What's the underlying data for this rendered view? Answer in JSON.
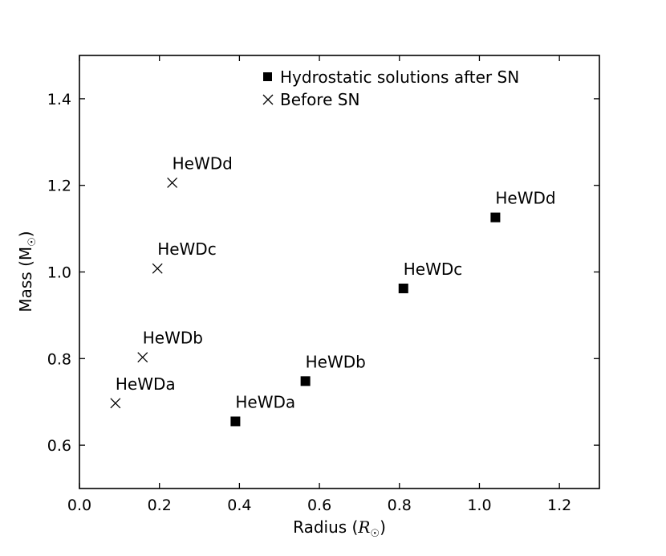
{
  "chart_data": {
    "type": "scatter",
    "title": "",
    "xlabel": "Radius (",
    "xlabel_symbol": "R",
    "xlabel_suffix": ")",
    "ylabel": "Mass (M",
    "ylabel_suffix": ")",
    "xlim": [
      0.0,
      1.3
    ],
    "ylim": [
      0.5,
      1.5
    ],
    "xticks": [
      0.0,
      0.2,
      0.4,
      0.6,
      0.8,
      1.0,
      1.2
    ],
    "yticks": [
      0.6,
      0.8,
      1.0,
      1.2,
      1.4
    ],
    "xtick_labels": [
      "0.0",
      "0.2",
      "0.4",
      "0.6",
      "0.8",
      "1.0",
      "1.2"
    ],
    "ytick_labels": [
      "0.6",
      "0.8",
      "1.0",
      "1.2",
      "1.4"
    ],
    "grid": false,
    "legend_position": "top-right",
    "series": [
      {
        "name": "Hydrostatic solutions after SN",
        "marker": "square",
        "color": "#000000",
        "points": [
          {
            "x": 0.39,
            "y": 0.655,
            "label": "HeWDa"
          },
          {
            "x": 0.565,
            "y": 0.748,
            "label": "HeWDb"
          },
          {
            "x": 0.81,
            "y": 0.962,
            "label": "HeWDc"
          },
          {
            "x": 1.04,
            "y": 1.126,
            "label": "HeWDd"
          }
        ]
      },
      {
        "name": "Before SN",
        "marker": "x",
        "color": "#000000",
        "points": [
          {
            "x": 0.09,
            "y": 0.697,
            "label": "HeWDa"
          },
          {
            "x": 0.158,
            "y": 0.803,
            "label": "HeWDb"
          },
          {
            "x": 0.195,
            "y": 1.008,
            "label": "HeWDc"
          },
          {
            "x": 0.232,
            "y": 1.206,
            "label": "HeWDd"
          }
        ]
      }
    ]
  }
}
